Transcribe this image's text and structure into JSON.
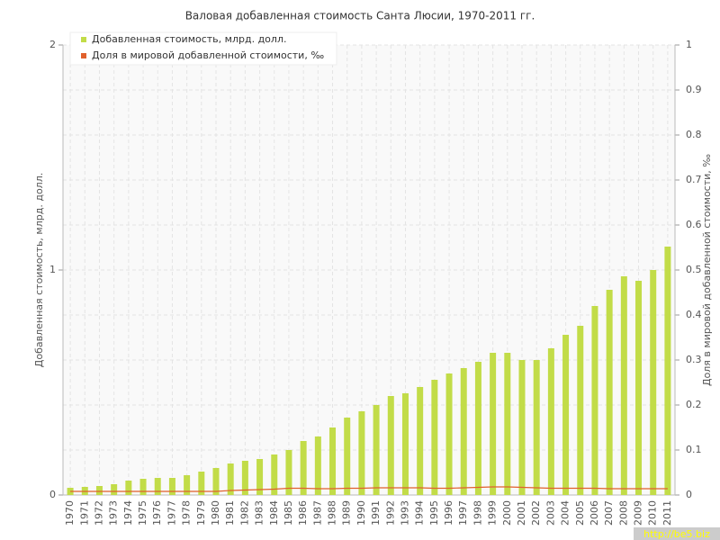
{
  "chart_data": {
    "type": "bar-line",
    "title": "Валовая добавленная стоимость Санта Люсии, 1970-2011 гг.",
    "y_label": "Добавленная стоимость, млрд. долл.",
    "y2_label": "Доля в мировой добавленной стоимости, ‰",
    "legend": "top-left",
    "grid": true,
    "watermark": "http://be5.biz",
    "categories": [
      "1970",
      "1971",
      "1972",
      "1973",
      "1974",
      "1975",
      "1976",
      "1977",
      "1978",
      "1979",
      "1980",
      "1981",
      "1982",
      "1983",
      "1984",
      "1985",
      "1986",
      "1987",
      "1988",
      "1989",
      "1990",
      "1991",
      "1992",
      "1993",
      "1994",
      "1995",
      "1996",
      "1997",
      "1998",
      "1999",
      "2000",
      "2001",
      "2002",
      "2003",
      "2004",
      "2005",
      "2006",
      "2007",
      "2008",
      "2009",
      "2010",
      "2011"
    ],
    "ylim": [
      0,
      2
    ],
    "yticks": [
      0,
      1,
      2
    ],
    "y2lim": [
      0,
      1
    ],
    "y2ticks": [
      0,
      0.1,
      0.2,
      0.3,
      0.4,
      0.5,
      0.6,
      0.7,
      0.8,
      0.9,
      1
    ],
    "series": [
      {
        "name": "Добавленная стоимость, млрд. долл.",
        "type": "bar",
        "color": "#c2dc48",
        "values": [
          0.032,
          0.036,
          0.04,
          0.048,
          0.064,
          0.072,
          0.076,
          0.076,
          0.088,
          0.104,
          0.12,
          0.14,
          0.152,
          0.16,
          0.18,
          0.2,
          0.24,
          0.26,
          0.3,
          0.344,
          0.372,
          0.4,
          0.44,
          0.452,
          0.48,
          0.512,
          0.54,
          0.564,
          0.592,
          0.632,
          0.632,
          0.6,
          0.6,
          0.652,
          0.712,
          0.752,
          0.84,
          0.912,
          0.972,
          0.952,
          1.0,
          1.104
        ]
      },
      {
        "name": "Доля в мировой добавленной стоимости, ‰",
        "type": "line",
        "axis": "y2",
        "color": "#e0602c",
        "values": [
          0.008,
          0.008,
          0.008,
          0.008,
          0.008,
          0.008,
          0.008,
          0.008,
          0.008,
          0.008,
          0.008,
          0.01,
          0.011,
          0.012,
          0.013,
          0.015,
          0.015,
          0.014,
          0.014,
          0.015,
          0.015,
          0.016,
          0.016,
          0.016,
          0.016,
          0.015,
          0.015,
          0.016,
          0.017,
          0.018,
          0.018,
          0.017,
          0.016,
          0.015,
          0.015,
          0.015,
          0.015,
          0.014,
          0.014,
          0.014,
          0.014,
          0.014
        ]
      }
    ]
  }
}
